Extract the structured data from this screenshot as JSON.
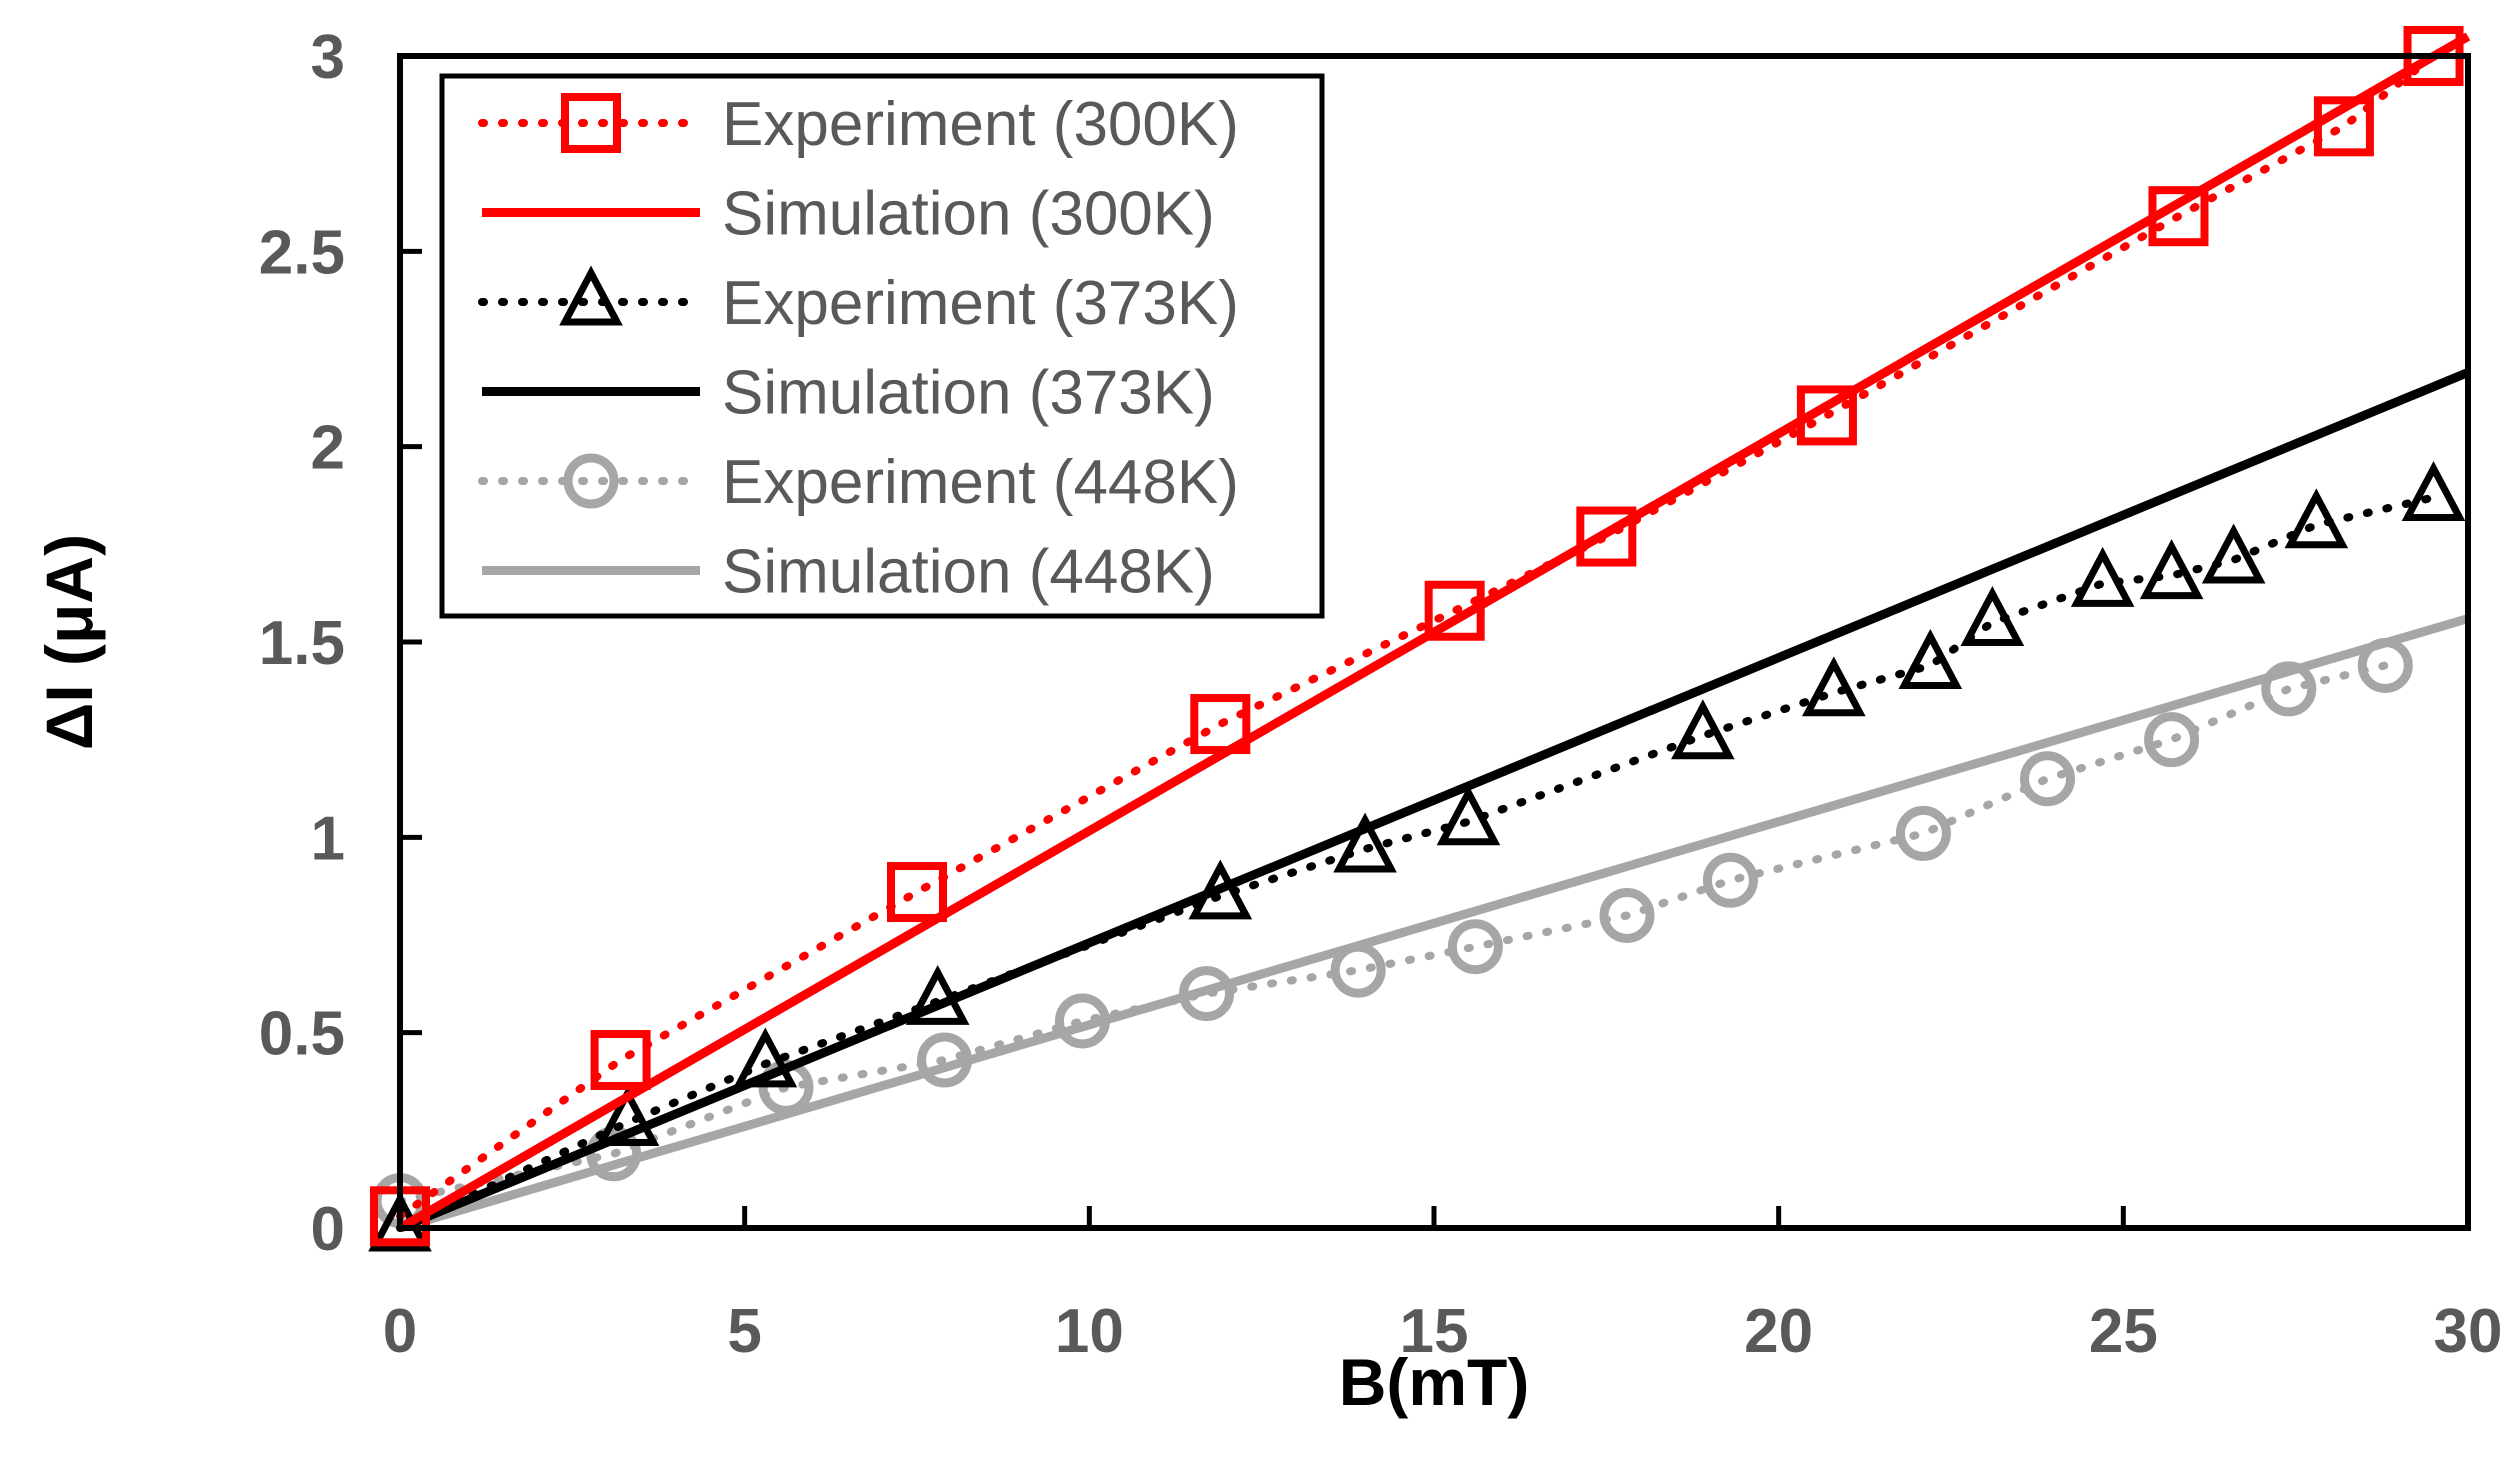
{
  "chart_data": {
    "type": "line",
    "title": "",
    "xlabel": "B(mT)",
    "ylabel": "ΔI (μA)",
    "xlim": [
      0,
      30
    ],
    "ylim": [
      0,
      3
    ],
    "xticks": [
      0,
      5,
      10,
      15,
      20,
      25,
      30
    ],
    "yticks": [
      0,
      0.5,
      1,
      1.5,
      2,
      2.5,
      3
    ],
    "xtick_labels": [
      "0",
      "5",
      "10",
      "15",
      "20",
      "25",
      "30"
    ],
    "ytick_labels": [
      "0",
      "0.5",
      "1",
      "1.5",
      "2",
      "2.5",
      "3"
    ],
    "grid": false,
    "legend_position": "top-left",
    "series": [
      {
        "name": "Experiment (300K)",
        "color": "#ff0000",
        "line": "dotted",
        "marker": "square",
        "x": [
          0,
          3.2,
          7.5,
          11.9,
          15.3,
          17.5,
          20.7,
          25.8,
          28.2,
          29.5
        ],
        "y": [
          0.03,
          0.43,
          0.86,
          1.29,
          1.58,
          1.77,
          2.08,
          2.59,
          2.82,
          3.0
        ]
      },
      {
        "name": "Simulation (300K)",
        "color": "#ff0000",
        "line": "solid",
        "marker": "none",
        "x": [
          0,
          30
        ],
        "y": [
          0.0,
          3.05
        ]
      },
      {
        "name": "Experiment (373K)",
        "color": "#000000",
        "line": "dotted",
        "marker": "triangle",
        "x": [
          0,
          3.3,
          5.3,
          7.8,
          11.9,
          14.0,
          15.5,
          18.9,
          20.8,
          22.2,
          23.1,
          24.7,
          25.7,
          26.6,
          27.8,
          29.5
        ],
        "y": [
          0.0,
          0.27,
          0.42,
          0.58,
          0.85,
          0.97,
          1.04,
          1.26,
          1.37,
          1.44,
          1.55,
          1.65,
          1.67,
          1.71,
          1.8,
          1.87
        ]
      },
      {
        "name": "Simulation (373K)",
        "color": "#000000",
        "line": "solid",
        "marker": "none",
        "x": [
          0,
          30
        ],
        "y": [
          0.0,
          2.19
        ]
      },
      {
        "name": "Experiment (448K)",
        "color": "#a6a6a6",
        "line": "dotted",
        "marker": "circle",
        "x": [
          0,
          3.1,
          5.6,
          7.9,
          9.9,
          11.7,
          13.9,
          15.6,
          17.8,
          19.3,
          22.1,
          23.9,
          25.7,
          27.4,
          28.8
        ],
        "y": [
          0.07,
          0.19,
          0.36,
          0.43,
          0.53,
          0.6,
          0.66,
          0.72,
          0.8,
          0.89,
          1.01,
          1.15,
          1.25,
          1.38,
          1.44
        ]
      },
      {
        "name": "Simulation (448K)",
        "color": "#a6a6a6",
        "line": "solid",
        "marker": "none",
        "x": [
          0,
          30
        ],
        "y": [
          0.0,
          1.56
        ]
      }
    ]
  }
}
